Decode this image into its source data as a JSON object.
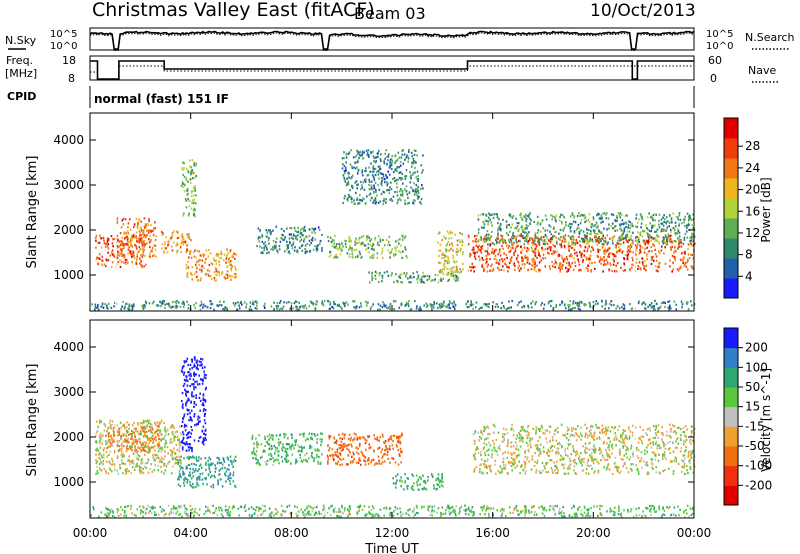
{
  "header": {
    "title": "Christmas Valley East (fitACF)",
    "beam": "Beam 03",
    "date": "10/Oct/2013"
  },
  "status_panels": {
    "nsky": {
      "label": "N.Sky",
      "ticks": [
        "10^5",
        "10^0"
      ]
    },
    "nsearch": {
      "label": "N.Search",
      "ticks": [
        "10^5",
        "10^0"
      ]
    },
    "freq": {
      "label_line1": "Freq.",
      "label_line2": "[MHz]",
      "ticks": [
        "18",
        "8"
      ]
    },
    "nave": {
      "label": "Nave",
      "ticks": [
        "60",
        "0"
      ]
    },
    "cpid": {
      "label": "CPID",
      "mode": "normal (fast) 151 IF"
    }
  },
  "colors": {
    "power_scale": [
      "#1a1aff",
      "#2060a8",
      "#2e8a68",
      "#5fae54",
      "#b4d23a",
      "#f0b41e",
      "#f07814",
      "#f03c0c",
      "#e00000"
    ],
    "velocity_scale": [
      "#1a1aff",
      "#3080c8",
      "#2ea870",
      "#5ac83a",
      "#c0c0c0",
      "#f0a030",
      "#f07010",
      "#f03010",
      "#e00000"
    ]
  },
  "chart_data": [
    {
      "type": "heatmap",
      "name": "Power",
      "ylabel": "Slant Range [km]",
      "xlabel": "Time UT",
      "ylim": [
        200,
        4600
      ],
      "xlim_hours": [
        0,
        24
      ],
      "yticks": [
        "1000",
        "2000",
        "3000",
        "4000"
      ],
      "xticks": [
        "00:00",
        "04:00",
        "08:00",
        "12:00",
        "16:00",
        "20:00",
        "00:00"
      ],
      "colorbar": {
        "label": "Power [dB]",
        "ticks": [
          "4",
          "8",
          "12",
          "16",
          "20",
          "24",
          "28"
        ],
        "range": [
          0,
          30
        ]
      },
      "regions": [
        {
          "t0": 0.2,
          "t1": 2.2,
          "r0": 1200,
          "r1": 1900,
          "level": 24
        },
        {
          "t0": 1.0,
          "t1": 2.6,
          "r0": 1400,
          "r1": 2300,
          "level": 22
        },
        {
          "t0": 2.8,
          "t1": 4.0,
          "r0": 1500,
          "r1": 2000,
          "level": 20
        },
        {
          "t0": 3.8,
          "t1": 5.8,
          "r0": 900,
          "r1": 1600,
          "level": 20
        },
        {
          "t0": 3.6,
          "t1": 4.2,
          "r0": 2300,
          "r1": 3600,
          "level": 12
        },
        {
          "t0": 6.6,
          "t1": 9.2,
          "r0": 1500,
          "r1": 2100,
          "level": 8
        },
        {
          "t0": 9.4,
          "t1": 12.6,
          "r0": 1400,
          "r1": 1900,
          "level": 12
        },
        {
          "t0": 10.0,
          "t1": 13.2,
          "r0": 2600,
          "r1": 3800,
          "level": 8
        },
        {
          "t0": 11.0,
          "t1": 14.6,
          "r0": 850,
          "r1": 1100,
          "level": 10
        },
        {
          "t0": 13.8,
          "t1": 14.8,
          "r0": 1000,
          "r1": 2000,
          "level": 16
        },
        {
          "t0": 15.0,
          "t1": 24.0,
          "r0": 1100,
          "r1": 1900,
          "level": 24
        },
        {
          "t0": 15.4,
          "t1": 24.0,
          "r0": 1700,
          "r1": 2400,
          "level": 10
        },
        {
          "t0": 0.0,
          "t1": 24.0,
          "r0": 250,
          "r1": 450,
          "level": 8
        }
      ]
    },
    {
      "type": "heatmap",
      "name": "Velocity",
      "ylabel": "Slant Range [km]",
      "xlabel": "Time UT",
      "ylim": [
        200,
        4600
      ],
      "xlim_hours": [
        0,
        24
      ],
      "yticks": [
        "1000",
        "2000",
        "3000",
        "4000"
      ],
      "xticks": [
        "00:00",
        "04:00",
        "08:00",
        "12:00",
        "16:00",
        "20:00",
        "00:00"
      ],
      "colorbar": {
        "label": "Velocity [m s^-1]",
        "ticks": [
          "200",
          "100",
          "50",
          "15",
          "-15",
          "-50",
          "-100",
          "-200"
        ],
        "range": [
          -250,
          250
        ]
      },
      "regions": [
        {
          "t0": 0.2,
          "t1": 3.6,
          "r0": 1200,
          "r1": 2400,
          "level": 0
        },
        {
          "t0": 0.6,
          "t1": 2.8,
          "r0": 1700,
          "r1": 2300,
          "level": -40
        },
        {
          "t0": 3.4,
          "t1": 5.8,
          "r0": 900,
          "r1": 1600,
          "level": 60
        },
        {
          "t0": 3.6,
          "t1": 4.6,
          "r0": 1700,
          "r1": 3800,
          "level": 200
        },
        {
          "t0": 6.4,
          "t1": 9.2,
          "r0": 1400,
          "r1": 2100,
          "level": 30
        },
        {
          "t0": 9.4,
          "t1": 12.4,
          "r0": 1400,
          "r1": 2100,
          "level": -60
        },
        {
          "t0": 12.0,
          "t1": 14.0,
          "r0": 850,
          "r1": 1200,
          "level": 40
        },
        {
          "t0": 15.2,
          "t1": 24.0,
          "r0": 1200,
          "r1": 2300,
          "level": 0
        },
        {
          "t0": 0.0,
          "t1": 24.0,
          "r0": 250,
          "r1": 500,
          "level": 20
        }
      ]
    }
  ]
}
